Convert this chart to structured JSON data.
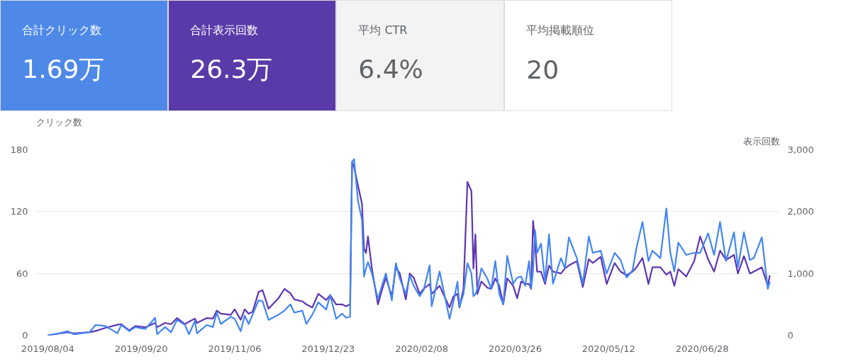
{
  "chart_data": [
    {
      "type": "other",
      "title": "合計クリック数",
      "annotations": [
        "1.69万"
      ],
      "color": "#4e89e8"
    },
    {
      "type": "other",
      "title": "合計表示回数",
      "annotations": [
        "26.3万"
      ],
      "color": "#5a3aa8"
    },
    {
      "type": "other",
      "title": "平均 CTR",
      "annotations": [
        "6.4%"
      ],
      "color": "#f3f3f3"
    },
    {
      "type": "other",
      "title": "平均掲載順位",
      "annotations": [
        "20"
      ],
      "color": "#ffffff"
    },
    {
      "type": "line",
      "ylabel": "クリック数",
      "y2label": "表示回数",
      "grid": "y",
      "line_style": "solid",
      "marker": "none",
      "x": [
        "2019-08-04",
        "2019-08-10",
        "2019-08-14",
        "2019-08-17",
        "2019-08-25",
        "2019-08-28",
        "2019-09-02",
        "2019-09-08",
        "2019-09-10",
        "2019-09-14",
        "2019-09-17",
        "2019-09-22",
        "2019-09-27",
        "2019-09-28",
        "2019-10-02",
        "2019-10-05",
        "2019-10-08",
        "2019-10-12",
        "2019-10-14",
        "2019-10-17",
        "2019-10-18",
        "2019-10-23",
        "2019-10-26",
        "2019-10-28",
        "2019-10-30",
        "2019-11-04",
        "2019-11-06",
        "2019-11-09",
        "2019-11-11",
        "2019-11-13",
        "2019-11-15",
        "2019-11-18",
        "2019-11-20",
        "2019-11-23",
        "2019-11-28",
        "2019-12-01",
        "2019-12-04",
        "2019-12-06",
        "2019-12-10",
        "2019-12-12",
        "2019-12-15",
        "2019-12-18",
        "2019-12-22",
        "2019-12-24",
        "2019-12-27",
        "2019-12-30",
        "2020-01-01",
        "2020-01-03",
        "2020-01-04",
        "2020-01-05",
        "2020-01-07",
        "2020-01-09",
        "2020-01-10",
        "2020-01-11",
        "2020-01-12",
        "2020-01-14",
        "2020-01-17",
        "2020-01-19",
        "2020-01-21",
        "2020-01-24",
        "2020-01-26",
        "2020-01-28",
        "2020-01-31",
        "2020-02-02",
        "2020-02-04",
        "2020-02-07",
        "2020-02-09",
        "2020-02-12",
        "2020-02-13",
        "2020-02-17",
        "2020-02-22",
        "2020-02-24",
        "2020-02-26",
        "2020-02-27",
        "2020-02-29",
        "2020-03-02",
        "2020-03-04",
        "2020-03-05",
        "2020-03-06",
        "2020-03-07",
        "2020-03-09",
        "2020-03-12",
        "2020-03-14",
        "2020-03-16",
        "2020-03-18",
        "2020-03-20",
        "2020-03-22",
        "2020-03-25",
        "2020-03-27",
        "2020-03-29",
        "2020-03-31",
        "2020-04-02",
        "2020-04-03",
        "2020-04-04",
        "2020-04-05",
        "2020-04-06",
        "2020-04-08",
        "2020-04-10",
        "2020-04-12",
        "2020-04-14",
        "2020-04-18",
        "2020-04-20",
        "2020-04-22",
        "2020-04-26",
        "2020-04-29",
        "2020-05-02",
        "2020-05-04",
        "2020-05-08",
        "2020-05-11",
        "2020-05-15",
        "2020-05-18",
        "2020-05-21",
        "2020-05-24",
        "2020-05-26",
        "2020-05-29",
        "2020-06-01",
        "2020-06-03",
        "2020-06-07",
        "2020-06-10",
        "2020-06-12",
        "2020-06-14",
        "2020-06-16",
        "2020-06-20",
        "2020-06-24",
        "2020-06-27",
        "2020-07-01",
        "2020-07-04",
        "2020-07-07",
        "2020-07-10",
        "2020-07-14",
        "2020-07-16",
        "2020-07-19",
        "2020-07-22",
        "2020-07-24",
        "2020-07-28",
        "2020-07-31",
        "2020-08-01"
      ],
      "series": [
        {
          "color": "#5e35b1",
          "axis": "y2",
          "values": [
            0,
            30,
            50,
            30,
            50,
            70,
            120,
            170,
            180,
            80,
            150,
            130,
            200,
            130,
            200,
            180,
            280,
            180,
            220,
            270,
            200,
            280,
            270,
            400,
            350,
            330,
            420,
            250,
            420,
            350,
            380,
            700,
            730,
            430,
            600,
            750,
            680,
            580,
            550,
            500,
            450,
            670,
            570,
            650,
            500,
            500,
            470,
            500,
            2800,
            2720,
            2420,
            2120,
            1400,
            1330,
            1600,
            1070,
            500,
            730,
            930,
            630,
            1100,
            1000,
            580,
            1000,
            930,
            670,
            750,
            830,
            670,
            800,
            450,
            630,
            670,
            450,
            750,
            2480,
            2330,
            1080,
            1630,
            670,
            870,
            770,
            750,
            920,
            800,
            500,
            920,
            800,
            600,
            870,
            830,
            830,
            750,
            1850,
            1500,
            1030,
            1030,
            830,
            1130,
            1030,
            1000,
            1080,
            1130,
            1200,
            780,
            1230,
            1170,
            1270,
            830,
            1170,
            1030,
            970,
            1030,
            1100,
            1250,
            830,
            1100,
            1100,
            980,
            1030,
            800,
            1070,
            950,
            1200,
            1600,
            1230,
            1030,
            1370,
            1220,
            1300,
            1000,
            1280,
            1000,
            1030,
            1100,
            800,
            970
          ]
        },
        {
          "color": "#4285f4",
          "values": [
            0,
            2,
            4,
            1,
            3,
            10,
            9,
            2,
            10,
            4,
            8,
            6,
            17,
            1,
            8,
            3,
            15,
            10,
            1,
            14,
            2,
            10,
            8,
            22,
            11,
            18,
            16,
            4,
            19,
            11,
            20,
            34,
            33,
            15,
            20,
            24,
            30,
            22,
            24,
            11,
            20,
            32,
            25,
            39,
            16,
            21,
            17,
            18,
            168,
            171,
            130,
            112,
            57,
            65,
            71,
            60,
            35,
            48,
            60,
            34,
            70,
            55,
            40,
            58,
            48,
            38,
            44,
            68,
            28,
            62,
            16,
            33,
            52,
            28,
            40,
            70,
            60,
            38,
            40,
            45,
            65,
            55,
            45,
            72,
            40,
            30,
            77,
            50,
            56,
            57,
            48,
            72,
            45,
            63,
            102,
            80,
            89,
            52,
            98,
            50,
            75,
            65,
            95,
            75,
            50,
            96,
            80,
            82,
            60,
            80,
            73,
            56,
            63,
            85,
            110,
            72,
            82,
            75,
            123,
            80,
            62,
            90,
            78,
            80,
            80,
            99,
            78,
            110,
            72,
            100,
            66,
            100,
            73,
            75,
            95,
            45,
            52
          ]
        }
      ],
      "xlim": [
        "2019-07-29",
        "2020-08-06"
      ],
      "xticks": [
        {
          "value": "2019-08-04",
          "label": "2019/08/04"
        },
        {
          "value": "2019-09-20",
          "label": "2019/09/20"
        },
        {
          "value": "2019-11-06",
          "label": "2019/11/06"
        },
        {
          "value": "2019-12-23",
          "label": "2019/12/23"
        },
        {
          "value": "2020-02-08",
          "label": "2020/02/08"
        },
        {
          "value": "2020-03-26",
          "label": "2020/03/26"
        },
        {
          "value": "2020-05-12",
          "label": "2020/05/12"
        },
        {
          "value": "2020-06-28",
          "label": "2020/06/28"
        }
      ],
      "ylim": [
        0,
        180
      ],
      "yticks": [
        0,
        60,
        120,
        180
      ],
      "y2lim": [
        0,
        3000
      ],
      "y2ticks": [
        {
          "value": 0,
          "label": "0"
        },
        {
          "value": 1000,
          "label": "1,000"
        },
        {
          "value": 2000,
          "label": "2,000"
        },
        {
          "value": 3000,
          "label": "3,000"
        }
      ]
    }
  ]
}
